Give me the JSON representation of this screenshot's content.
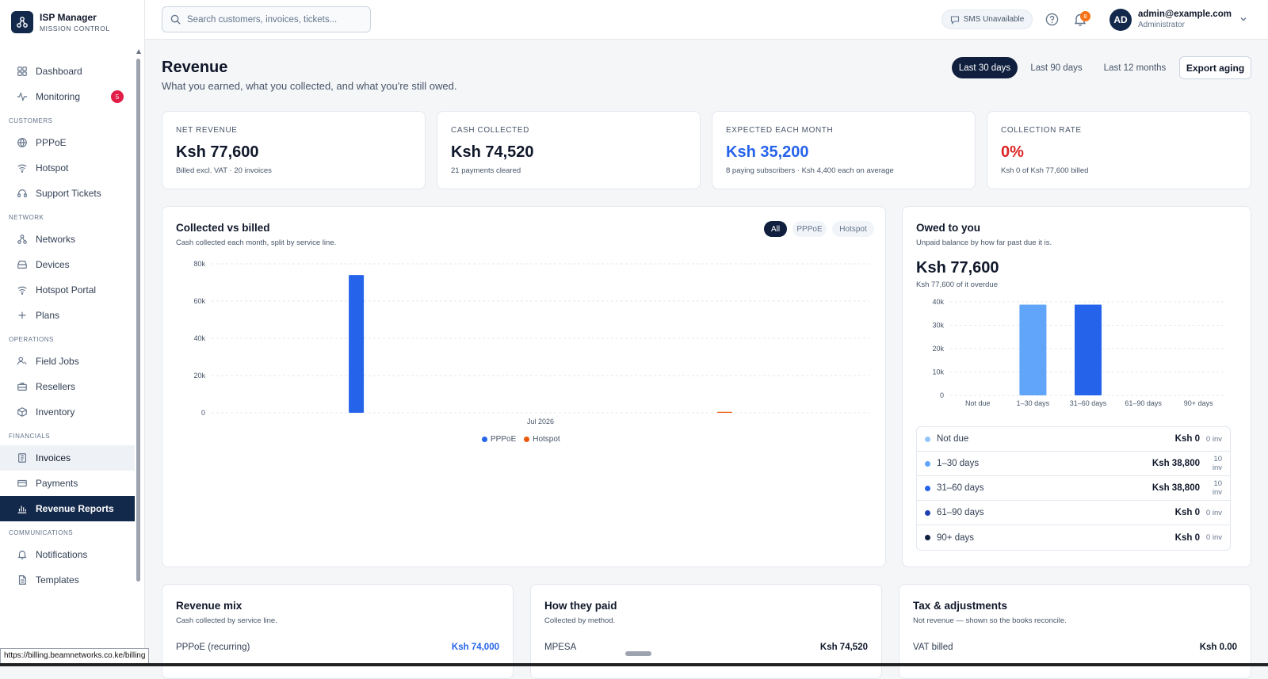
{
  "brand": {
    "title": "ISP Manager",
    "subtitle": "MISSION CONTROL"
  },
  "sidebar": {
    "top": [
      {
        "label": "Dashboard",
        "icon": "grid-icon"
      },
      {
        "label": "Monitoring",
        "icon": "activity-icon",
        "badge": "5"
      }
    ],
    "sections": [
      {
        "title": "CUSTOMERS",
        "items": [
          {
            "label": "PPPoE",
            "icon": "globe-icon"
          },
          {
            "label": "Hotspot",
            "icon": "wifi-icon"
          },
          {
            "label": "Support Tickets",
            "icon": "headset-icon"
          }
        ]
      },
      {
        "title": "NETWORK",
        "items": [
          {
            "label": "Networks",
            "icon": "network-icon"
          },
          {
            "label": "Devices",
            "icon": "router-icon"
          },
          {
            "label": "Hotspot Portal",
            "icon": "wifi-icon"
          },
          {
            "label": "Plans",
            "icon": "plus-icon"
          }
        ]
      },
      {
        "title": "OPERATIONS",
        "items": [
          {
            "label": "Field Jobs",
            "icon": "user-wrench-icon"
          },
          {
            "label": "Resellers",
            "icon": "briefcase-icon"
          },
          {
            "label": "Inventory",
            "icon": "box-icon"
          }
        ]
      },
      {
        "title": "FINANCIALS",
        "items": [
          {
            "label": "Invoices",
            "icon": "invoice-icon"
          },
          {
            "label": "Payments",
            "icon": "card-icon"
          },
          {
            "label": "Revenue Reports",
            "icon": "bar-chart-icon"
          }
        ]
      },
      {
        "title": "COMMUNICATIONS",
        "items": [
          {
            "label": "Notifications",
            "icon": "bell-icon"
          },
          {
            "label": "Templates",
            "icon": "document-icon"
          }
        ]
      }
    ]
  },
  "topbar": {
    "search_placeholder": "Search customers, invoices, tickets...",
    "sms_status": "SMS  Unavailable",
    "notification_count": "8",
    "avatar_initials": "AD",
    "user_email": "admin@example.com",
    "user_role": "Administrator"
  },
  "page": {
    "title": "Revenue",
    "subtitle": "What you earned, what you collected, and what you're still owed.",
    "ranges": [
      "Last 30 days",
      "Last 90 days",
      "Last 12 months"
    ],
    "selected_range": "Last 30 days",
    "export_label": "Export aging"
  },
  "kpis": [
    {
      "label": "NET REVENUE",
      "value": "Ksh 77,600",
      "note": "Billed excl. VAT · 20 invoices",
      "color": "#0f172a"
    },
    {
      "label": "CASH COLLECTED",
      "value": "Ksh 74,520",
      "note": "21 payments cleared",
      "color": "#0f172a"
    },
    {
      "label": "EXPECTED EACH MONTH",
      "value": "Ksh 35,200",
      "note": "8 paying subscribers · Ksh 4,400 each on average",
      "color": "#2563eb"
    },
    {
      "label": "COLLECTION RATE",
      "value": "0%",
      "note": "Ksh 0 of Ksh 77,600 billed",
      "color": "#dc2626"
    }
  ],
  "collected_card": {
    "title": "Collected vs billed",
    "subtitle": "Cash collected each month, split by service line.",
    "filters": [
      "All",
      "PPPoE",
      "Hotspot"
    ],
    "selected_filter": "All"
  },
  "owed_card": {
    "title": "Owed to you",
    "subtitle": "Unpaid balance by how far past due it is.",
    "total": "Ksh 77,600",
    "overdue_note": "Ksh 77,600 of it overdue",
    "rows": [
      {
        "label": "Not due",
        "amount": "Ksh 0",
        "count": "0 inv",
        "color": "#93c5fd"
      },
      {
        "label": "1–30 days",
        "amount": "Ksh 38,800",
        "count": "10 inv",
        "color": "#60a5fa"
      },
      {
        "label": "31–60 days",
        "amount": "Ksh 38,800",
        "count": "10 inv",
        "color": "#2563eb"
      },
      {
        "label": "61–90 days",
        "amount": "Ksh 0",
        "count": "0 inv",
        "color": "#1e40af"
      },
      {
        "label": "90+ days",
        "amount": "Ksh 0",
        "count": "0 inv",
        "color": "#0f1f3d"
      }
    ]
  },
  "bottom_cards": [
    {
      "title": "Revenue mix",
      "subtitle": "Cash collected by service line.",
      "row_label": "PPPoE (recurring)",
      "row_value": "Ksh 74,000",
      "value_color": "#2563eb"
    },
    {
      "title": "How they paid",
      "subtitle": "Collected by method.",
      "row_label": "MPESA",
      "row_value": "Ksh 74,520",
      "value_color": "#0f172a"
    },
    {
      "title": "Tax & adjustments",
      "subtitle": "Not revenue — shown so the books reconcile.",
      "row_label": "VAT billed",
      "row_value": "Ksh 0.00",
      "value_color": "#0f172a"
    }
  ],
  "status_tooltip": "https://billing.beamnetworks.co.ke/billing",
  "chart_data": [
    {
      "type": "bar",
      "title": "Collected vs billed",
      "categories": [
        "Jul 2026"
      ],
      "series": [
        {
          "name": "PPPoE",
          "values": [
            74000
          ],
          "color": "#2563eb"
        },
        {
          "name": "Hotspot",
          "values": [
            520
          ],
          "color": "#ea580c"
        }
      ],
      "yticks": [
        "0",
        "20k",
        "40k",
        "60k",
        "80k"
      ],
      "ylim": [
        0,
        80000
      ],
      "grid": true,
      "legend": "bottom"
    },
    {
      "type": "bar",
      "title": "Owed to you",
      "categories": [
        "Not due",
        "1–30 days",
        "31–60 days",
        "61–90 days",
        "90+ days"
      ],
      "values": [
        0,
        38800,
        38800,
        0,
        0
      ],
      "colors": [
        "#93c5fd",
        "#60a5fa",
        "#2563eb",
        "#1e40af",
        "#0f1f3d"
      ],
      "yticks": [
        "0",
        "10k",
        "20k",
        "30k",
        "40k"
      ],
      "ylim": [
        0,
        40000
      ],
      "grid": true
    }
  ]
}
